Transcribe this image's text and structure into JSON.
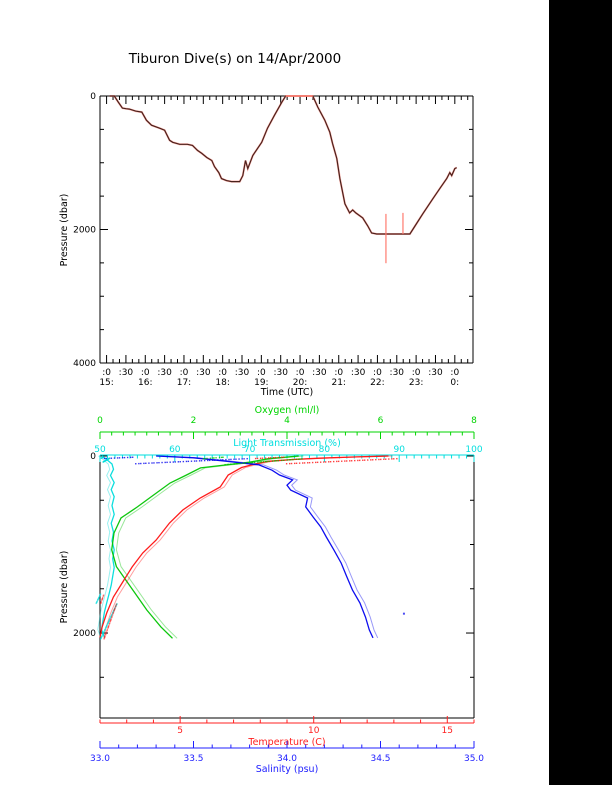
{
  "window": {
    "bg_color": "#ffffff",
    "right_band": {
      "color": "#000000",
      "x": 549,
      "width": 63
    }
  },
  "chart_data": [
    {
      "type": "line",
      "title": "Tiburon Dive(s) on 14/Apr/2000",
      "xlabel": "Time (UTC)",
      "ylabel": "Pressure (dbar)",
      "x_range_hours": [
        14.83,
        24.47
      ],
      "x_halfhour_labels": [
        ":0",
        ":30",
        ":0",
        ":30",
        ":0",
        ":30",
        ":0",
        ":30",
        ":0",
        ":30",
        ":0",
        ":30",
        ":0",
        ":30",
        ":0",
        ":30",
        ":0",
        ":30",
        ":0"
      ],
      "x_hour_labels": [
        "15:",
        "16:",
        "17:",
        "18:",
        "19:",
        "20:",
        "21:",
        "22:",
        "23:",
        "0:"
      ],
      "ylim": [
        0,
        4000
      ],
      "y_tick_values": [
        0,
        2000,
        4000
      ],
      "y_tick_labels": [
        "0",
        "2000",
        "4000"
      ],
      "y_minor_step": 500,
      "grid": false,
      "track_color": "#4a211c",
      "surface_color": "#ff7a6e",
      "series_name": "ROV dive pressure vs time",
      "track": [
        [
          15.08,
          0
        ],
        [
          15.2,
          0
        ],
        [
          15.3,
          90
        ],
        [
          15.41,
          181
        ],
        [
          15.5,
          190
        ],
        [
          15.59,
          196
        ],
        [
          15.75,
          226
        ],
        [
          15.91,
          241
        ],
        [
          16.03,
          362
        ],
        [
          16.16,
          438
        ],
        [
          16.37,
          483
        ],
        [
          16.5,
          513
        ],
        [
          16.63,
          664
        ],
        [
          16.71,
          694
        ],
        [
          16.89,
          724
        ],
        [
          17.09,
          724
        ],
        [
          17.22,
          740
        ],
        [
          17.35,
          815
        ],
        [
          17.46,
          860
        ],
        [
          17.59,
          921
        ],
        [
          17.72,
          966
        ],
        [
          17.79,
          1057
        ],
        [
          17.9,
          1147
        ],
        [
          17.97,
          1238
        ],
        [
          18.1,
          1268
        ],
        [
          18.23,
          1283
        ],
        [
          18.44,
          1283
        ],
        [
          18.52,
          1192
        ],
        [
          18.59,
          966
        ],
        [
          18.65,
          1087
        ],
        [
          18.78,
          891
        ],
        [
          19.01,
          694
        ],
        [
          19.16,
          483
        ],
        [
          19.34,
          287
        ],
        [
          19.53,
          91
        ],
        [
          19.63,
          0
        ],
        [
          20.33,
          0
        ],
        [
          20.46,
          166
        ],
        [
          20.64,
          362
        ],
        [
          20.77,
          543
        ],
        [
          20.84,
          709
        ],
        [
          20.95,
          936
        ],
        [
          21.03,
          1238
        ],
        [
          21.16,
          1615
        ],
        [
          21.28,
          1751
        ],
        [
          21.36,
          1706
        ],
        [
          21.44,
          1751
        ],
        [
          21.62,
          1826
        ],
        [
          21.75,
          1947
        ],
        [
          21.85,
          2053
        ],
        [
          21.98,
          2068
        ],
        [
          22.84,
          2068
        ],
        [
          22.97,
          1947
        ],
        [
          23.17,
          1766
        ],
        [
          23.43,
          1540
        ],
        [
          23.61,
          1389
        ],
        [
          23.79,
          1238
        ],
        [
          23.87,
          1147
        ],
        [
          23.92,
          1192
        ],
        [
          24.0,
          1087
        ],
        [
          24.05,
          1072
        ]
      ],
      "surface_segment": {
        "t_start": 19.63,
        "t_end": 20.33,
        "pressure": 0
      },
      "spikes": [
        {
          "t": 22.22,
          "p_top": 1766,
          "p_bottom": 2505
        },
        {
          "t": 22.66,
          "p_top": 1751,
          "p_bottom": 2068
        }
      ]
    },
    {
      "type": "line",
      "ylabel": "Pressure (dbar)",
      "ylim": [
        0,
        2960
      ],
      "y_tick_values": [
        0,
        2000
      ],
      "y_tick_labels": [
        "0",
        "2000"
      ],
      "y_minor_step": 500,
      "grid": false,
      "axes": {
        "oxygen": {
          "label": "Oxygen (ml/l)",
          "color": "#00d400",
          "curve_color": "#00c400",
          "range": [
            0,
            8
          ],
          "major_ticks": [
            0,
            2,
            4,
            6,
            8
          ],
          "major_tick_labels": [
            "0",
            "2",
            "4",
            "6",
            "8"
          ],
          "minor_step": 0.25
        },
        "light": {
          "label": "Light Transmission (%)",
          "color": "#00dede",
          "curve_color": "#00dcdc",
          "range": [
            50,
            100
          ],
          "major_ticks": [
            50,
            60,
            70,
            80,
            90,
            100
          ],
          "major_tick_labels": [
            "50",
            "60",
            "70",
            "80",
            "90",
            "100"
          ],
          "minor_step": 1
        },
        "temperature": {
          "label": "Temperature (C)",
          "color": "#ff2020",
          "curve_color": "#ff1010",
          "range": [
            2,
            16
          ],
          "major_ticks": [
            5,
            10,
            15
          ],
          "major_tick_labels": [
            "5",
            "10",
            "15"
          ],
          "minor_step": 1
        },
        "salinity": {
          "label": "Salinity (psu)",
          "color": "#2020ff",
          "curve_color": "#0000ee",
          "range": [
            33,
            35
          ],
          "major_ticks": [
            33,
            33.5,
            34,
            34.5,
            35
          ],
          "major_tick_labels": [
            "33.0",
            "33.5",
            "34.0",
            "34.5",
            "35.0"
          ],
          "minor_step": 0.1
        }
      },
      "series": {
        "temperature": [
          [
            0,
            12.8
          ],
          [
            10,
            11.6
          ],
          [
            25,
            10.2
          ],
          [
            40,
            9.2
          ],
          [
            60,
            8.3
          ],
          [
            90,
            7.8
          ],
          [
            130,
            7.3
          ],
          [
            215,
            6.8
          ],
          [
            350,
            6.5
          ],
          [
            475,
            5.75
          ],
          [
            610,
            5.1
          ],
          [
            757,
            4.6
          ],
          [
            950,
            4.1
          ],
          [
            1096,
            3.6
          ],
          [
            1254,
            3.2
          ],
          [
            1401,
            2.9
          ],
          [
            1593,
            2.5
          ],
          [
            1774,
            2.25
          ],
          [
            1932,
            2.08
          ],
          [
            2050,
            2.0
          ]
        ],
        "salinity": [
          [
            0,
            33.3
          ],
          [
            20,
            33.5
          ],
          [
            60,
            33.68
          ],
          [
            100,
            33.85
          ],
          [
            160,
            33.92
          ],
          [
            215,
            33.96
          ],
          [
            270,
            34.03
          ],
          [
            330,
            34.0
          ],
          [
            385,
            34.02
          ],
          [
            475,
            34.11
          ],
          [
            575,
            34.1
          ],
          [
            690,
            34.14
          ],
          [
            800,
            34.18
          ],
          [
            915,
            34.21
          ],
          [
            1060,
            34.25
          ],
          [
            1210,
            34.29
          ],
          [
            1365,
            34.32
          ],
          [
            1515,
            34.35
          ],
          [
            1660,
            34.39
          ],
          [
            1820,
            34.42
          ],
          [
            1965,
            34.44
          ],
          [
            2055,
            34.46
          ]
        ],
        "oxygen": [
          [
            0,
            4.25
          ],
          [
            30,
            3.6
          ],
          [
            70,
            3.2
          ],
          [
            100,
            2.7
          ],
          [
            135,
            2.15
          ],
          [
            215,
            1.85
          ],
          [
            305,
            1.5
          ],
          [
            440,
            1.15
          ],
          [
            575,
            0.8
          ],
          [
            700,
            0.45
          ],
          [
            870,
            0.3
          ],
          [
            1060,
            0.25
          ],
          [
            1250,
            0.35
          ],
          [
            1400,
            0.55
          ],
          [
            1550,
            0.75
          ],
          [
            1740,
            1.0
          ],
          [
            1930,
            1.3
          ],
          [
            2060,
            1.55
          ]
        ],
        "light": [
          [
            0,
            50.3
          ],
          [
            40,
            50.9
          ],
          [
            90,
            51.6
          ],
          [
            150,
            51.8
          ],
          [
            220,
            51.4
          ],
          [
            300,
            51.9
          ],
          [
            380,
            51.5
          ],
          [
            460,
            51.9
          ],
          [
            560,
            51.6
          ],
          [
            660,
            51.9
          ],
          [
            760,
            51.5
          ],
          [
            860,
            51.8
          ],
          [
            960,
            51.6
          ],
          [
            1060,
            51.9
          ],
          [
            1160,
            51.7
          ],
          [
            1260,
            51.9
          ],
          [
            1360,
            51.7
          ],
          [
            1460,
            51.5
          ],
          [
            1560,
            51.2
          ],
          [
            1660,
            50.9
          ],
          [
            1760,
            50.6
          ],
          [
            1860,
            50.4
          ],
          [
            1960,
            50.2
          ],
          [
            2050,
            50.6
          ]
        ]
      },
      "trace_offset": {
        "temperature": 0.15,
        "salinity": 0.025,
        "oxygen": 0.1,
        "light": -0.5
      },
      "surface_scatter": [
        {
          "series": "temperature",
          "min": 7.8,
          "max": 13.2,
          "p_min": 5,
          "p_max": 80,
          "n": 55
        },
        {
          "series": "salinity",
          "min": 33.02,
          "max": 33.8,
          "p_min": 5,
          "p_max": 80,
          "n": 55
        },
        {
          "series": "oxygen",
          "min": 2.2,
          "max": 4.35,
          "p_min": 5,
          "p_max": 90,
          "n": 45
        },
        {
          "series": "light",
          "min": 50.1,
          "max": 51.2,
          "p_min": 5,
          "p_max": 60,
          "n": 25
        }
      ],
      "deep_scatter": [
        {
          "series": "light",
          "min": 49.4,
          "max": 52.2,
          "p_min": 1550,
          "p_max": 2060,
          "n": 80
        },
        {
          "series": "temperature",
          "min": 2.0,
          "max": 2.6,
          "p_min": 1550,
          "p_max": 2060,
          "n": 40
        }
      ],
      "outliers": [
        {
          "series": "salinity",
          "v": 34.62,
          "p": 1770
        }
      ]
    }
  ]
}
